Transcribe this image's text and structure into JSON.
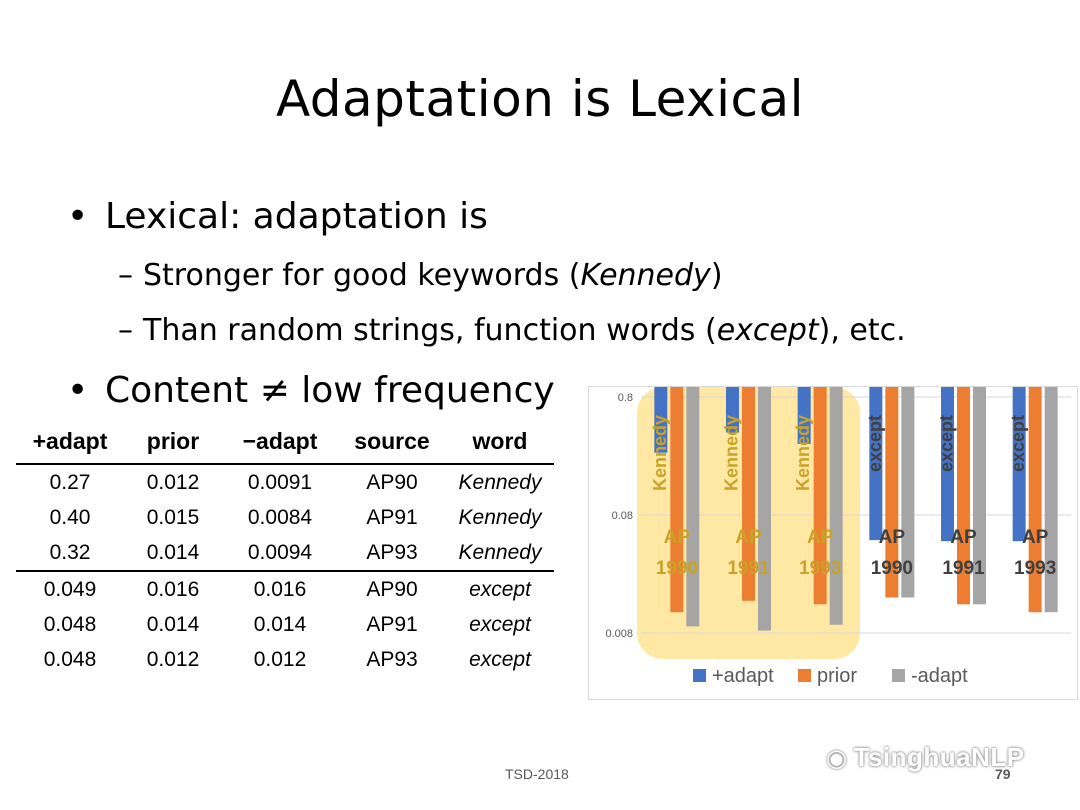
{
  "slide": {
    "title": "Adaptation is Lexical",
    "bullet1": {
      "marker": "•",
      "text": "Lexical: adaptation is"
    },
    "sub1": {
      "dash": "–",
      "pre": "Stronger for good keywords (",
      "em": "Kennedy",
      "post": ")"
    },
    "sub2": {
      "dash": "–",
      "pre": "Than random strings, function words (",
      "em": "except",
      "post": "), etc."
    },
    "bullet2": {
      "marker": "•",
      "text": "Content ≠ low frequency"
    }
  },
  "table": {
    "headers": [
      "+adapt",
      "prior",
      "−adapt",
      "source",
      "word"
    ],
    "rows": [
      [
        "0.27",
        "0.012",
        "0.0091",
        "AP90",
        "Kennedy"
      ],
      [
        "0.40",
        "0.015",
        "0.0084",
        "AP91",
        "Kennedy"
      ],
      [
        "0.32",
        "0.014",
        "0.0094",
        "AP93",
        "Kennedy"
      ],
      [
        "0.049",
        "0.016",
        "0.016",
        "AP90",
        "except"
      ],
      [
        "0.048",
        "0.014",
        "0.014",
        "AP91",
        "except"
      ],
      [
        "0.048",
        "0.012",
        "0.012",
        "AP93",
        "except"
      ]
    ]
  },
  "chart_data": {
    "type": "bar",
    "scale": "log",
    "ylim": [
      0.005,
      1.0
    ],
    "yticks": [
      "0.8",
      "0.08",
      "0.008"
    ],
    "grid": true,
    "legend_position": "bottom",
    "categories": [
      {
        "word": "Kennedy",
        "line1": "AP",
        "line2": "1990"
      },
      {
        "word": "Kennedy",
        "line1": "AP",
        "line2": "1991"
      },
      {
        "word": "Kennedy",
        "line1": "AP",
        "line2": "1993"
      },
      {
        "word": "except",
        "line1": "AP",
        "line2": "1990"
      },
      {
        "word": "except",
        "line1": "AP",
        "line2": "1991"
      },
      {
        "word": "except",
        "line1": "AP",
        "line2": "1993"
      }
    ],
    "series": [
      {
        "name": "+adapt",
        "color": "#4472c4",
        "values": [
          0.27,
          0.4,
          0.32,
          0.049,
          0.048,
          0.048
        ]
      },
      {
        "name": "prior",
        "color": "#ed7d31",
        "values": [
          0.012,
          0.015,
          0.014,
          0.016,
          0.014,
          0.012
        ]
      },
      {
        "name": "-adapt",
        "color": "#a5a5a5",
        "values": [
          0.0091,
          0.0084,
          0.0094,
          0.016,
          0.014,
          0.012
        ]
      }
    ],
    "highlight": {
      "color": "#ffd966",
      "category_range": [
        0,
        2
      ]
    }
  },
  "footer": {
    "text": "TSD-2018",
    "page": "79"
  },
  "watermark": {
    "icon": "wechat-icon",
    "text": "TsinghuaNLP"
  }
}
